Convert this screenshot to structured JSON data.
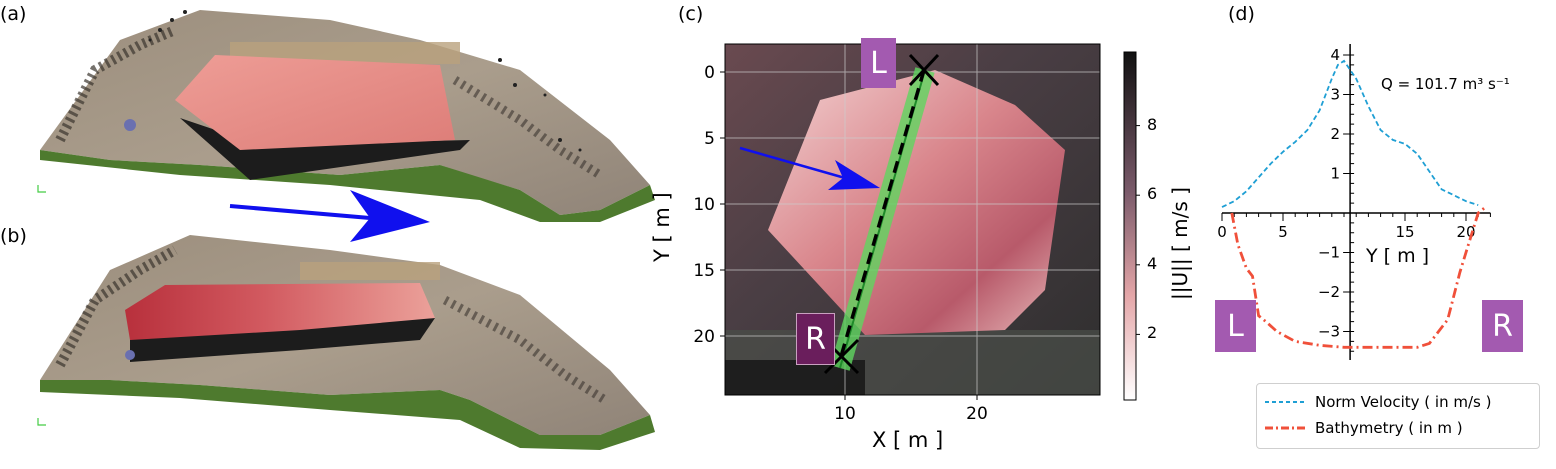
{
  "panels": {
    "a": "(a)",
    "b": "(b)",
    "c": "(c)",
    "d": "(d)"
  },
  "colors": {
    "flow_arrow": "#1010ee",
    "transect": "#5fd65f",
    "velocity_line": "#1f9fd4",
    "bathymetry_line": "#f0503a",
    "bank_badge": "#a35ab0"
  },
  "map": {
    "xlabel": "X [ m ]",
    "ylabel": "Y [ m ]",
    "xticks": [
      "10",
      "20"
    ],
    "yticks": [
      "0",
      "5",
      "10",
      "15",
      "20"
    ],
    "bank_left": "L",
    "bank_right": "R",
    "colorbar_label": "||U|| [ m/s ]",
    "colorbar_ticks": [
      "2",
      "4",
      "6",
      "8"
    ]
  },
  "chart_data": {
    "type": "line",
    "annotation": "Q = 101.7 m³ s⁻¹",
    "xlabel": "Y [ m ]",
    "xticks": [
      "0",
      "5",
      "15",
      "20"
    ],
    "yticks": [
      "4",
      "3",
      "2",
      "1",
      "−1",
      "−2",
      "−3"
    ],
    "xlim": [
      0,
      22
    ],
    "ylim": [
      -3.6,
      4.1
    ],
    "bank_left": "L",
    "bank_right": "R",
    "legend_position": "bottom-right",
    "series": [
      {
        "name": "Norm Velocity ( in m/s )",
        "x": [
          0,
          1,
          2,
          3,
          4,
          5,
          6,
          7,
          8,
          9,
          9.5,
          10,
          11,
          12,
          13,
          14,
          15,
          16,
          17,
          18,
          19,
          20,
          21
        ],
        "values": [
          0.15,
          0.3,
          0.55,
          0.9,
          1.25,
          1.55,
          1.8,
          2.1,
          2.6,
          3.4,
          3.75,
          3.85,
          3.4,
          2.7,
          2.1,
          1.85,
          1.75,
          1.5,
          1.05,
          0.6,
          0.45,
          0.3,
          0.2
        ]
      },
      {
        "name": "Bathymetry ( in m )",
        "x": [
          0.8,
          1.3,
          2,
          2.5,
          3,
          3.6,
          4.5,
          6,
          8,
          10,
          12,
          14,
          16,
          17,
          18.5,
          19.5,
          20.2,
          21,
          21.6
        ],
        "values": [
          0,
          -0.8,
          -1.4,
          -1.6,
          -2.6,
          -2.75,
          -3.0,
          -3.25,
          -3.35,
          -3.4,
          -3.4,
          -3.4,
          -3.4,
          -3.3,
          -2.7,
          -1.5,
          -0.8,
          0,
          0.15
        ]
      }
    ]
  }
}
